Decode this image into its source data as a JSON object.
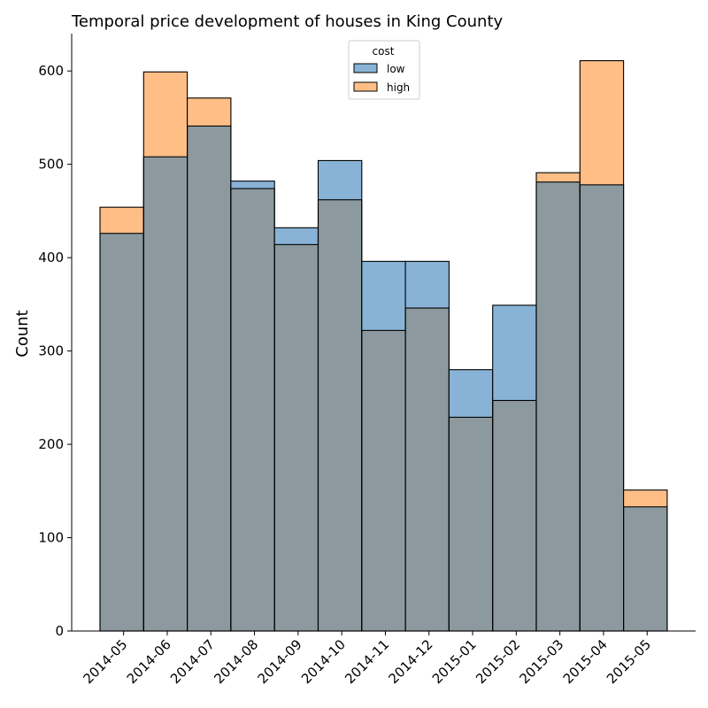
{
  "chart_data": {
    "type": "bar",
    "title": "Temporal price development of houses in King County",
    "xlabel": "",
    "ylabel": "Count",
    "categories": [
      "2014-05",
      "2014-06",
      "2014-07",
      "2014-08",
      "2014-09",
      "2014-10",
      "2014-11",
      "2014-12",
      "2015-01",
      "2015-02",
      "2015-03",
      "2015-04",
      "2015-05"
    ],
    "series": [
      {
        "name": "low",
        "color": "#1f77b4",
        "values": [
          426,
          508,
          541,
          482,
          432,
          504,
          396,
          396,
          280,
          349,
          481,
          478,
          133
        ]
      },
      {
        "name": "high",
        "color": "#ff7f0e",
        "values": [
          454,
          599,
          571,
          474,
          414,
          462,
          322,
          346,
          229,
          247,
          491,
          611,
          151
        ]
      }
    ],
    "overlap_color": "#8c9a9f",
    "ylim": [
      0,
      640
    ],
    "yticks": [
      0,
      100,
      200,
      300,
      400,
      500,
      600
    ],
    "grid": false,
    "legend": {
      "title": "cost",
      "placement": "top-center"
    }
  }
}
